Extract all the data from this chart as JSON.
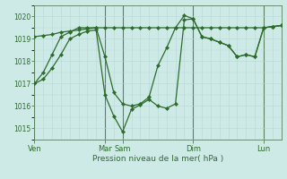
{
  "background_color": "#ceeae7",
  "grid_color": "#b8d8d5",
  "line_color": "#2d6b2d",
  "marker_color": "#2d6b2d",
  "xlabel": "Pression niveau de la mer( hPa )",
  "ylim": [
    1014.5,
    1020.5
  ],
  "yticks": [
    1015,
    1016,
    1017,
    1018,
    1019,
    1020
  ],
  "day_labels": [
    "Ven",
    "Mar",
    "Sam",
    "Dim",
    "Lun"
  ],
  "day_positions": [
    0,
    48,
    60,
    108,
    156
  ],
  "xlim": [
    0,
    168
  ],
  "series_flat": {
    "x": [
      0,
      6,
      12,
      18,
      24,
      30,
      36,
      42,
      48,
      54,
      60,
      66,
      72,
      78,
      84,
      90,
      96,
      102,
      108,
      114,
      120,
      126,
      132,
      138,
      144,
      150,
      156,
      162,
      168
    ],
    "y": [
      1019.1,
      1019.15,
      1019.2,
      1019.3,
      1019.35,
      1019.4,
      1019.45,
      1019.5,
      1019.5,
      1019.5,
      1019.5,
      1019.5,
      1019.5,
      1019.5,
      1019.5,
      1019.5,
      1019.5,
      1019.5,
      1019.5,
      1019.5,
      1019.5,
      1019.5,
      1019.5,
      1019.5,
      1019.5,
      1019.5,
      1019.5,
      1019.55,
      1019.6
    ]
  },
  "series_main": {
    "x": [
      0,
      6,
      12,
      18,
      24,
      30,
      36,
      42,
      48,
      54,
      60,
      66,
      72,
      78,
      84,
      90,
      96,
      102,
      108,
      114,
      120,
      126,
      132,
      138,
      144,
      150,
      156,
      162,
      168
    ],
    "y": [
      1017.0,
      1017.5,
      1018.3,
      1019.1,
      1019.3,
      1019.5,
      1019.5,
      1019.5,
      1018.2,
      1016.6,
      1016.1,
      1016.0,
      1016.1,
      1016.4,
      1017.8,
      1018.6,
      1019.5,
      1020.05,
      1019.9,
      1019.1,
      1019.0,
      1018.85,
      1018.7,
      1018.2,
      1018.3,
      1018.2,
      1019.5,
      1019.55,
      1019.6
    ]
  },
  "series_low": {
    "x": [
      0,
      6,
      12,
      18,
      24,
      30,
      36,
      42,
      48,
      54,
      60,
      66,
      72,
      78,
      84,
      90,
      96,
      102,
      108,
      114,
      120,
      126,
      132,
      138,
      144,
      150,
      156,
      162,
      168
    ],
    "y": [
      1017.0,
      1017.2,
      1017.7,
      1018.3,
      1019.0,
      1019.2,
      1019.35,
      1019.4,
      1016.5,
      1015.55,
      1014.85,
      1015.85,
      1016.05,
      1016.3,
      1016.0,
      1015.9,
      1016.1,
      1019.85,
      1019.9,
      1019.1,
      1019.0,
      1018.85,
      1018.7,
      1018.2,
      1018.3,
      1018.2,
      1019.5,
      1019.55,
      1019.6
    ]
  }
}
